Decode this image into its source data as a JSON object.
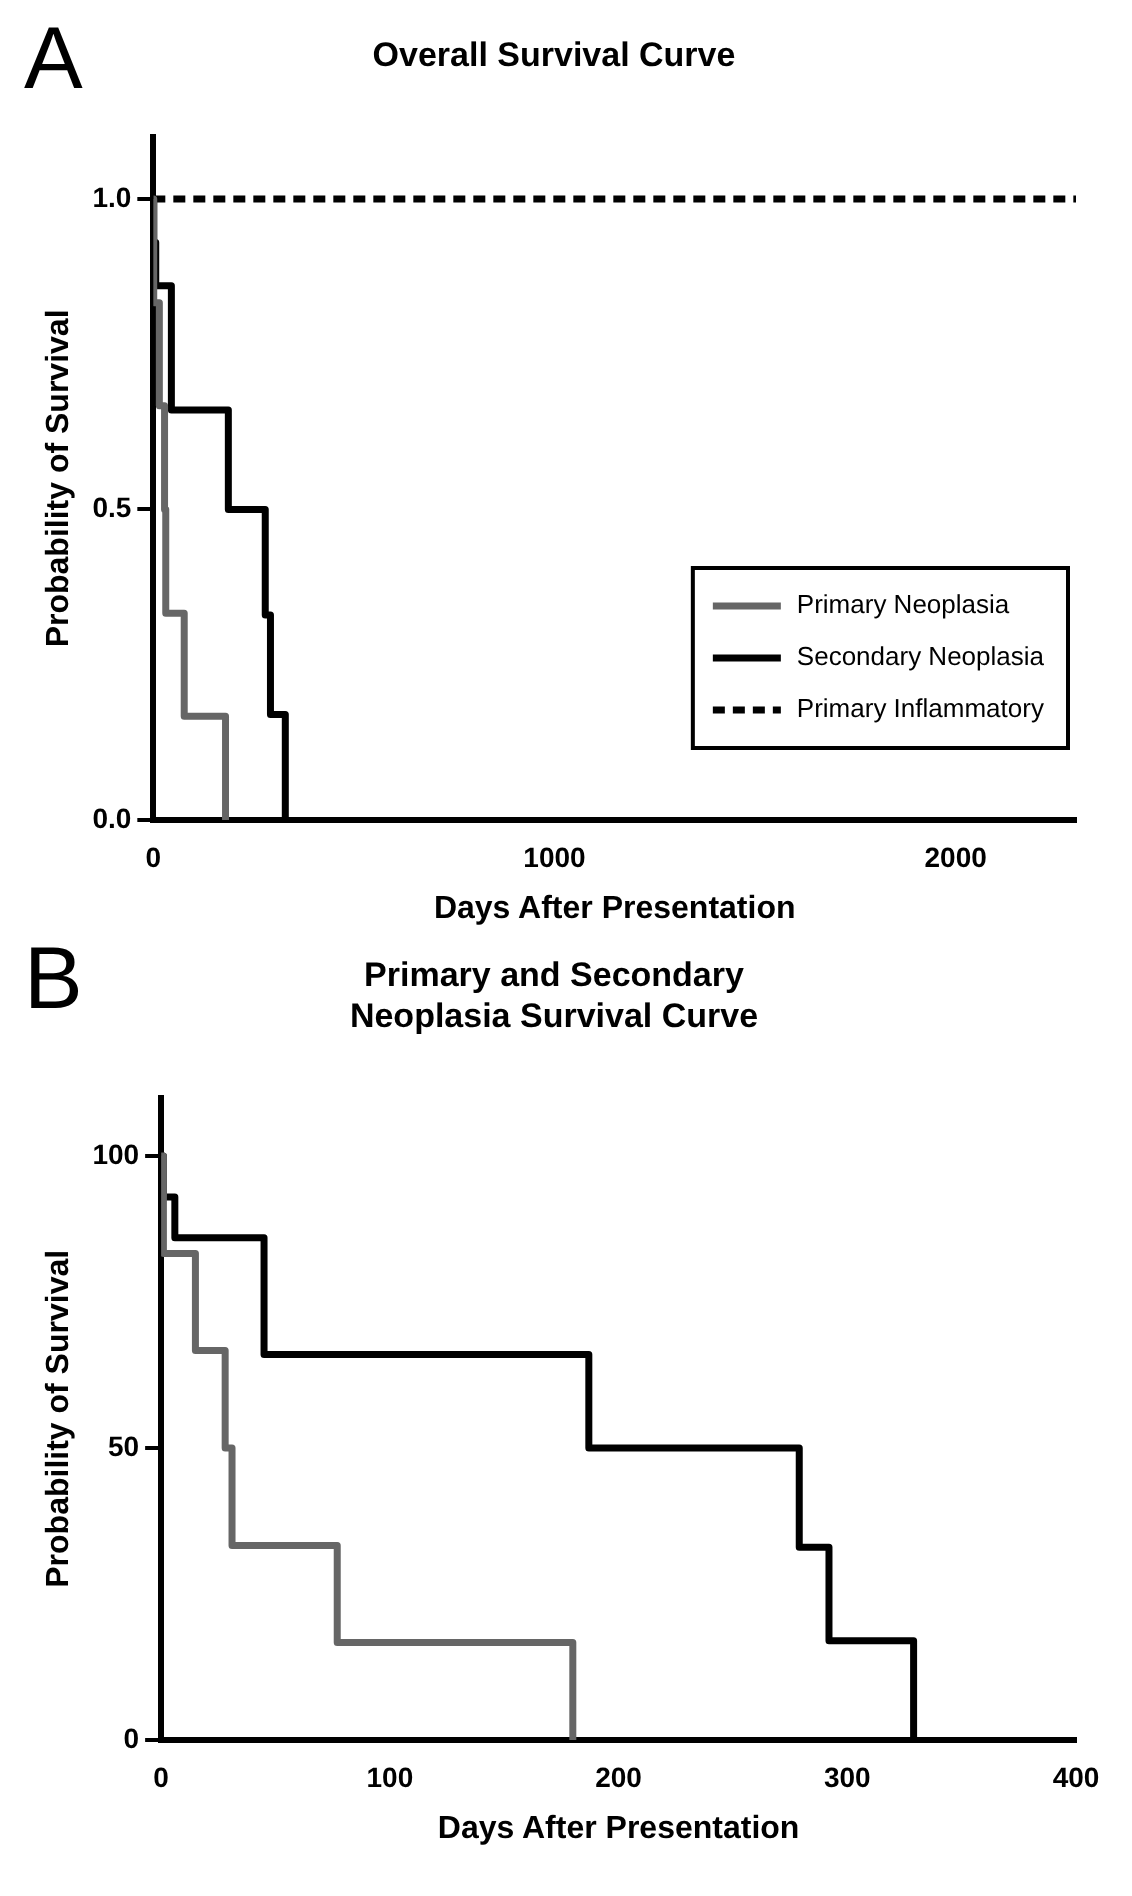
{
  "chart_data": [
    {
      "type": "step",
      "title": "Overall Survival Curve",
      "xlabel": "Days After Presentation",
      "ylabel": "Probability of Survival",
      "annotations": [
        "A"
      ],
      "xlim": [
        0,
        2300
      ],
      "xticks": [
        0,
        1000,
        2000
      ],
      "ylim": [
        0,
        1.1
      ],
      "yticks": [
        {
          "value": 0,
          "label": "0.0"
        },
        {
          "value": 0.5,
          "label": "0.5"
        },
        {
          "value": 1,
          "label": "1.0"
        }
      ],
      "grid": false,
      "legend": "bottom right",
      "series": [
        {
          "name": "Primary Neoplasia",
          "color": "#666666",
          "line_style": "solid",
          "x": [
            0,
            1,
            15,
            28,
            31,
            77,
            180
          ],
          "values": [
            1,
            0.833,
            0.667,
            0.5,
            0.333,
            0.167,
            0
          ]
        },
        {
          "name": "Secondary Neoplasia",
          "color": "#000000",
          "line_style": "solid",
          "x": [
            0,
            1,
            6,
            45,
            187,
            279,
            292,
            329
          ],
          "values": [
            1,
            0.93,
            0.86,
            0.66,
            0.5,
            0.33,
            0.17,
            0
          ]
        },
        {
          "name": "Primary Inflammatory",
          "color": "#000000",
          "line_style": "dashed",
          "x": [
            0,
            2300
          ],
          "values": [
            1,
            1
          ]
        }
      ]
    },
    {
      "type": "step",
      "title": "Primary and Secondary Neoplasia Survival Curve",
      "xlabel": "Days After Presentation",
      "ylabel": "Probability of Survival",
      "annotations": [
        "B"
      ],
      "xlim": [
        0,
        400
      ],
      "xticks": [
        0,
        100,
        200,
        300,
        400
      ],
      "ylim": [
        0,
        110
      ],
      "yticks": [
        0,
        50,
        100
      ],
      "grid": false,
      "legend": false,
      "series": [
        {
          "color": "#666666",
          "line_style": "solid",
          "x": [
            0,
            1,
            15,
            28,
            31,
            77,
            180
          ],
          "values": [
            100,
            83.3,
            66.7,
            50,
            33.3,
            16.7,
            0
          ]
        },
        {
          "color": "#000000",
          "line_style": "solid",
          "x": [
            0,
            1,
            6,
            45,
            187,
            279,
            292,
            329
          ],
          "values": [
            100,
            93,
            86,
            66,
            50,
            33,
            17,
            0
          ]
        }
      ]
    }
  ]
}
